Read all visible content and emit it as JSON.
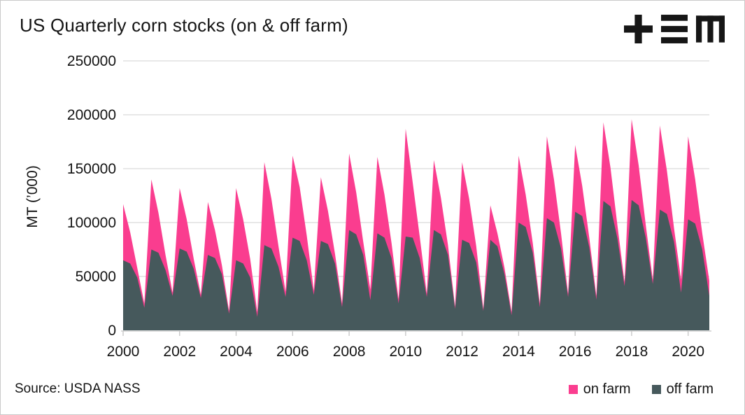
{
  "header": {
    "title": "US Quarterly corn stocks (on & off farm)"
  },
  "logo": {
    "glyphs": [
      "plus",
      "triple-bar",
      "m"
    ],
    "color": "#161616"
  },
  "footer": {
    "source": "Source: USDA NASS"
  },
  "colors": {
    "on_farm": "#fa3d8f",
    "off_farm": "#46595c",
    "gridline": "#d9d9d9",
    "axis": "#c4c4c4",
    "text": "#141414",
    "background": "#ffffff"
  },
  "chart_data": {
    "type": "area",
    "stacked": true,
    "title": "US Quarterly corn stocks (on & off farm)",
    "xlabel": "",
    "ylabel": "MT (’000)",
    "ylim": [
      0,
      250000
    ],
    "y_ticks": [
      0,
      50000,
      100000,
      150000,
      200000,
      250000
    ],
    "x_ticks": [
      2000,
      2002,
      2004,
      2006,
      2008,
      2010,
      2012,
      2014,
      2016,
      2018,
      2020
    ],
    "x_start": 2000,
    "x_end": 2020.75,
    "x_step_years": 0.25,
    "grid": true,
    "legend_position": "bottom-right",
    "series": [
      {
        "name": "on farm",
        "color": "#fa3d8f",
        "values": [
          52000,
          29000,
          9000,
          4000,
          65000,
          37000,
          14000,
          3000,
          56000,
          30000,
          9000,
          3000,
          49000,
          26000,
          8000,
          2500,
          67000,
          41000,
          17000,
          4500,
          77000,
          46000,
          19000,
          5000,
          76000,
          50000,
          23000,
          4000,
          59000,
          31000,
          9000,
          3500,
          71000,
          39000,
          12000,
          10000,
          71000,
          40000,
          14000,
          4000,
          100000,
          51000,
          20000,
          3000,
          65000,
          34000,
          9000,
          2000,
          72000,
          41000,
          15000,
          2000,
          32000,
          12000,
          6000,
          3000,
          62000,
          30000,
          9000,
          3500,
          76000,
          40000,
          14000,
          3000,
          62000,
          28000,
          9000,
          3500,
          73000,
          36000,
          12000,
          4000,
          75000,
          37000,
          12000,
          4000,
          78000,
          40000,
          13000,
          12000,
          77000,
          41000,
          15000,
          14000
        ]
      },
      {
        "name": "off farm",
        "color": "#46595c",
        "values": [
          65000,
          62000,
          49000,
          21000,
          75000,
          72000,
          56000,
          32000,
          76000,
          73000,
          57000,
          30000,
          70000,
          67000,
          52000,
          15500,
          65000,
          62000,
          49000,
          12500,
          79000,
          76000,
          59000,
          31000,
          86000,
          83000,
          65000,
          33000,
          83000,
          80000,
          62000,
          21500,
          93000,
          89000,
          70000,
          28000,
          90000,
          86000,
          67000,
          25000,
          87000,
          86000,
          67000,
          31000,
          93000,
          89000,
          70000,
          20000,
          84000,
          81000,
          63000,
          18000,
          84000,
          78000,
          52000,
          14000,
          100000,
          96000,
          72000,
          21500,
          104000,
          100000,
          76000,
          31000,
          110000,
          106000,
          77000,
          28500,
          120000,
          115000,
          85000,
          41000,
          121000,
          116000,
          86000,
          43000,
          112000,
          108000,
          82000,
          35000,
          103000,
          99000,
          75000,
          32000
        ]
      }
    ]
  }
}
